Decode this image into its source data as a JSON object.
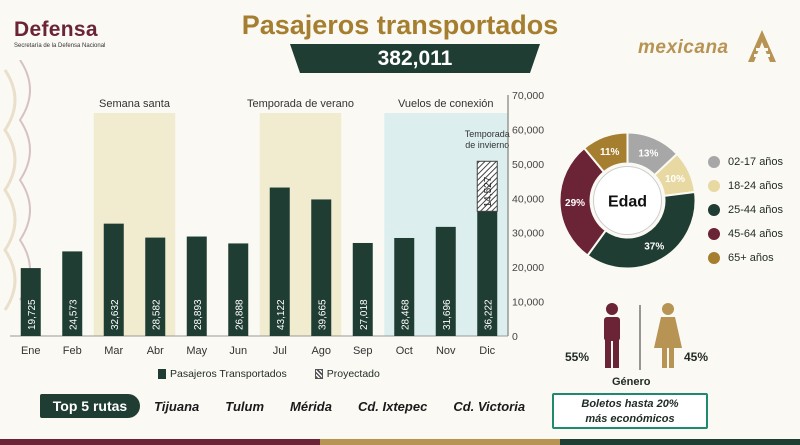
{
  "header": {
    "logo_title": "Defensa",
    "logo_subtitle": "Secretaría de la Defensa Nacional",
    "title": "Pasajeros transportados",
    "total": "382,011",
    "brand": "mexicana"
  },
  "chart_data": {
    "type": "bar",
    "categories": [
      "Ene",
      "Feb",
      "Mar",
      "Abr",
      "May",
      "Jun",
      "Jul",
      "Ago",
      "Sep",
      "Oct",
      "Nov",
      "Dic"
    ],
    "series": [
      {
        "name": "Pasajeros Transportados",
        "values": [
          19725,
          24573,
          32632,
          28582,
          28893,
          26888,
          43122,
          39665,
          27018,
          28468,
          31696,
          36222
        ]
      },
      {
        "name": "Proyectado",
        "values": [
          null,
          null,
          null,
          null,
          null,
          null,
          null,
          null,
          null,
          null,
          null,
          14527
        ]
      }
    ],
    "value_labels": [
      "19,725",
      "24,573",
      "32,632",
      "28,582",
      "28,893",
      "26,888",
      "43,122",
      "39,665",
      "27,018",
      "28,468",
      "31,696",
      "36,222"
    ],
    "projected_label": "14,527",
    "ylim": [
      0,
      70000
    ],
    "yticks": [
      0,
      10000,
      20000,
      30000,
      40000,
      50000,
      60000,
      70000
    ],
    "ytick_labels": [
      "0",
      "10,000",
      "20,000",
      "30,000",
      "40,000",
      "50,000",
      "60,000",
      "70,000"
    ],
    "y_axis_side": "right",
    "annotations": [
      {
        "label": "Semana santa",
        "months": [
          "Mar",
          "Abr"
        ],
        "color": "#f1ebd0"
      },
      {
        "label": "Temporada de verano",
        "months": [
          "Jul",
          "Ago"
        ],
        "color": "#f1ebd0"
      },
      {
        "label": "Vuelos de conexión",
        "months": [
          "Oct",
          "Dic"
        ],
        "color": "#dcefee"
      }
    ],
    "winter_note": [
      "Temporada",
      "de invierno"
    ],
    "legend": {
      "solid": "Pasajeros Transportados",
      "hatched": "Proyectado",
      "position": "bottom"
    },
    "colors": {
      "bar": "#1f3d33",
      "label": "#ffffff"
    }
  },
  "age": {
    "center_label": "Edad",
    "segments": [
      {
        "label": "02-17 años",
        "pct": 13,
        "text": "13%",
        "color": "#a7a7a7"
      },
      {
        "label": "18-24 años",
        "pct": 10,
        "text": "10%",
        "color": "#e8d9a2"
      },
      {
        "label": "25-44 años",
        "pct": 37,
        "text": "37%",
        "color": "#1f3d33"
      },
      {
        "label": "45-64 años",
        "pct": 29,
        "text": "29%",
        "color": "#6b2336"
      },
      {
        "label": "65+ años",
        "pct": 11,
        "text": "11%",
        "color": "#a57f2f"
      }
    ]
  },
  "gender": {
    "label": "Género",
    "male": "55%",
    "female": "45%",
    "male_color": "#6b2336",
    "female_color": "#b89454"
  },
  "routes": {
    "label": "Top 5 rutas",
    "items": [
      "Tijuana",
      "Tulum",
      "Mérida",
      "Cd. Ixtepec",
      "Cd. Victoria"
    ]
  },
  "promo": {
    "line1": "Boletos hasta 20%",
    "line2": "más económicos"
  }
}
